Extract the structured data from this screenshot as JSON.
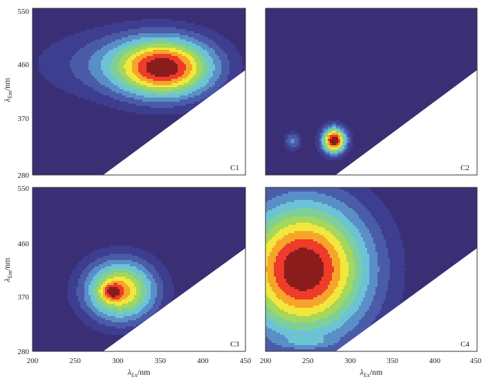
{
  "colors": {
    "background": "#3a2f75",
    "levels": [
      "#3a2f75",
      "#3d3e8f",
      "#4a5ba8",
      "#5a8ec6",
      "#6cc3d6",
      "#7ecf9a",
      "#a4d75c",
      "#f2e83d",
      "#f7a52a",
      "#ee3b2a",
      "#8a1c1c"
    ],
    "contour_line": "#1a1a1a",
    "frame": "#333333"
  },
  "axes": {
    "x_label_main": "λ",
    "x_label_sub": "Ex",
    "x_label_unit": "/nm",
    "y_label_main": "λ",
    "y_label_sub": "Em",
    "y_label_unit": "/nm",
    "x_ticks": [
      "200",
      "250",
      "300",
      "350",
      "400",
      "450"
    ],
    "y_ticks": [
      "280",
      "370",
      "460",
      "550"
    ]
  },
  "chart_data": [
    {
      "type": "heatmap",
      "label": "C1",
      "xlim": [
        200,
        450
      ],
      "ylim": [
        280,
        550
      ],
      "xlabel": "λEx/nm",
      "ylabel": "λEm/nm",
      "peaks": [
        {
          "ex": 356,
          "em": 453,
          "sx": 40,
          "sy": 34,
          "amp": 1.0
        },
        {
          "ex": 305,
          "em": 460,
          "sx": 70,
          "sy": 40,
          "amp": 0.3
        }
      ],
      "masked_triangle": {
        "ex_at_280": 283,
        "em_at_450": 450
      }
    },
    {
      "type": "heatmap",
      "label": "C2",
      "xlim": [
        200,
        450
      ],
      "ylim": [
        280,
        550
      ],
      "xlabel": "λEx/nm",
      "ylabel": "λEm/nm",
      "peaks": [
        {
          "ex": 281,
          "em": 336,
          "sx": 10,
          "sy": 15,
          "amp": 1.0
        },
        {
          "ex": 232,
          "em": 335,
          "sx": 7,
          "sy": 10,
          "amp": 0.3
        }
      ],
      "masked_triangle": {
        "ex_at_280": 283,
        "em_at_450": 450
      }
    },
    {
      "type": "heatmap",
      "label": "C3",
      "xlim": [
        200,
        450
      ],
      "ylim": [
        280,
        550
      ],
      "xlabel": "λEx/nm",
      "ylabel": "λEm/nm",
      "peaks": [
        {
          "ex": 293,
          "em": 378,
          "sx": 9,
          "sy": 10,
          "amp": 0.35
        },
        {
          "ex": 303,
          "em": 380,
          "sx": 30,
          "sy": 36,
          "amp": 1.0
        }
      ],
      "masked_triangle": {
        "ex_at_280": 283,
        "em_at_450": 450
      }
    },
    {
      "type": "heatmap",
      "label": "C4",
      "xlim": [
        200,
        450
      ],
      "ylim": [
        280,
        550
      ],
      "xlabel": "λEx/nm",
      "ylabel": "λEm/nm",
      "peaks": [
        {
          "ex": 245,
          "em": 415,
          "sx": 55,
          "sy": 80,
          "amp": 1.0
        },
        {
          "ex": 250,
          "em": 295,
          "sx": 20,
          "sy": 5,
          "amp": 0.1
        }
      ],
      "masked_triangle": {
        "ex_at_280": 283,
        "em_at_450": 450
      }
    }
  ]
}
